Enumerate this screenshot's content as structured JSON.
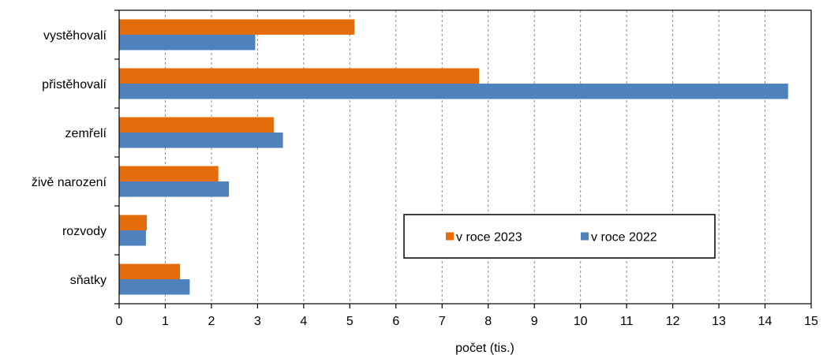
{
  "chart_data": {
    "type": "bar",
    "orientation": "horizontal",
    "categories": [
      "vystěhovalí",
      "přistěhovalí",
      "zemřelí",
      "živě narození",
      "rozvody",
      "sňatky"
    ],
    "series": [
      {
        "name": "v roce 2023",
        "color": "#E46C0A",
        "values": [
          5.1,
          7.8,
          3.35,
          2.15,
          0.6,
          1.32
        ]
      },
      {
        "name": "v roce 2022",
        "color": "#4F81BD",
        "values": [
          2.95,
          14.5,
          3.55,
          2.38,
          0.58,
          1.53
        ]
      }
    ],
    "xlabel": "počet (tis.)",
    "xlim": [
      0,
      15
    ],
    "xticks": [
      0,
      1,
      2,
      3,
      4,
      5,
      6,
      7,
      8,
      9,
      10,
      11,
      12,
      13,
      14,
      15
    ],
    "grid": "vertical dashed",
    "legend_position": "lower-right-inside"
  }
}
